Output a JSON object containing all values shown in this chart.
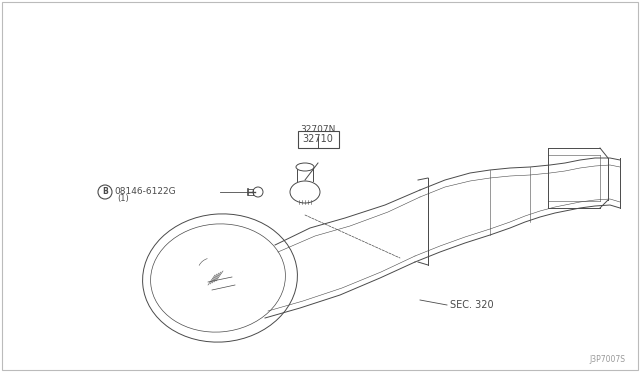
{
  "bg_color": "#ffffff",
  "line_color": "#4a4a4a",
  "text_color": "#4a4a4a",
  "fig_width": 6.4,
  "fig_height": 3.72,
  "watermark": "J3P7007S",
  "label_32707N": "32707N",
  "label_32710": "32710",
  "label_bolt": "08146-6122G",
  "label_bolt_sub": "(1)",
  "label_sec": "SEC. 320",
  "border_color": "#cccccc",
  "lw": 0.7,
  "lw_thin": 0.4,
  "lw_thick": 1.0
}
